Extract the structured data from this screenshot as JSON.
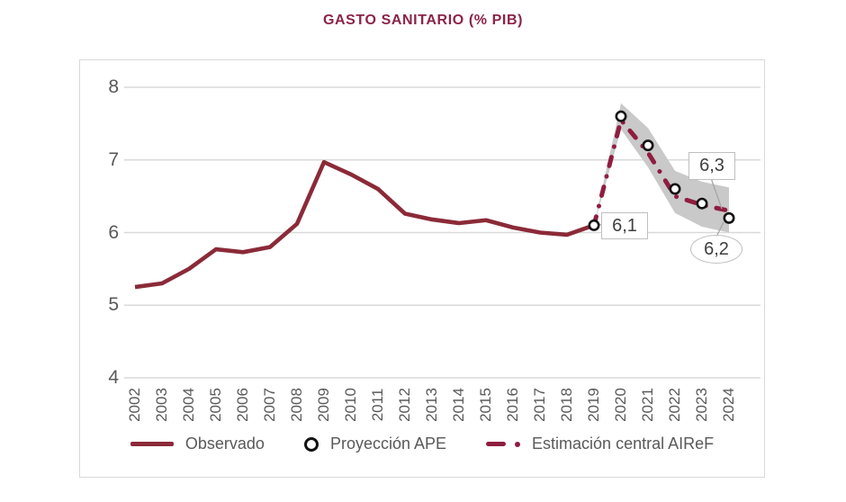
{
  "title": "GASTO SANITARIO (% PIB)",
  "colors": {
    "title": "#8B2346",
    "observed": "#8B2A38",
    "airef": "#8F1D40",
    "band": "#C9C9C9",
    "grid": "#D9D9D9",
    "axis_text": "#595959",
    "annotation_border": "#BFBFBF",
    "annotation_text": "#404040",
    "leader": "#A6A6A6",
    "ape_marker_stroke": "#121212"
  },
  "chart_data": {
    "type": "line",
    "title": "GASTO SANITARIO (% PIB)",
    "x": [
      2002,
      2003,
      2004,
      2005,
      2006,
      2007,
      2008,
      2009,
      2010,
      2011,
      2012,
      2013,
      2014,
      2015,
      2016,
      2017,
      2018,
      2019,
      2020,
      2021,
      2022,
      2023,
      2024
    ],
    "xlabel": "",
    "ylabel": "",
    "ylim": [
      4,
      8
    ],
    "y_ticks": [
      8,
      7,
      6,
      5,
      4
    ],
    "grid": "horizontal",
    "legend_position": "bottom",
    "series": [
      {
        "name": "Observado",
        "type": "line",
        "style": "solid",
        "x": [
          2002,
          2003,
          2004,
          2005,
          2006,
          2007,
          2008,
          2009,
          2010,
          2011,
          2012,
          2013,
          2014,
          2015,
          2016,
          2017,
          2018,
          2019
        ],
        "values": [
          5.25,
          5.3,
          5.5,
          5.77,
          5.73,
          5.8,
          6.12,
          6.97,
          6.8,
          6.6,
          6.26,
          6.18,
          6.13,
          6.17,
          6.07,
          6.0,
          5.97,
          6.1
        ]
      },
      {
        "name": "Proyección APE",
        "type": "scatter",
        "marker": "open-circle",
        "x": [
          2019,
          2020,
          2021,
          2022,
          2023,
          2024
        ],
        "values": [
          6.1,
          7.6,
          7.2,
          6.6,
          6.4,
          6.2
        ]
      },
      {
        "name": "Estimación central AIReF",
        "type": "line",
        "style": "dash-dot",
        "x": [
          2019,
          2020,
          2021,
          2022,
          2023,
          2024
        ],
        "values": [
          6.1,
          7.55,
          7.1,
          6.5,
          6.38,
          6.3
        ]
      },
      {
        "name": "Banda de incertidumbre AIReF",
        "type": "band",
        "x": [
          2019,
          2020,
          2021,
          2022,
          2023,
          2024
        ],
        "upper": [
          6.1,
          7.78,
          7.44,
          6.85,
          6.7,
          6.62
        ],
        "lower": [
          6.1,
          7.42,
          6.9,
          6.27,
          6.08,
          6.0
        ]
      }
    ],
    "annotations": [
      {
        "text": "6,1",
        "year": 2019,
        "value": 6.1,
        "shape": "box",
        "refers_to": "Proyección APE"
      },
      {
        "text": "6,3",
        "year": 2024,
        "value": 6.3,
        "shape": "box",
        "refers_to": "Estimación central AIReF"
      },
      {
        "text": "6,2",
        "year": 2024,
        "value": 6.2,
        "shape": "ellipse",
        "refers_to": "Proyección APE"
      }
    ]
  },
  "legend": {
    "items": [
      {
        "label": "Observado",
        "swatch": "solid-line"
      },
      {
        "label": "Proyección APE",
        "swatch": "open-circle"
      },
      {
        "label": "Estimación central AIReF",
        "swatch": "dash-dot"
      }
    ]
  }
}
